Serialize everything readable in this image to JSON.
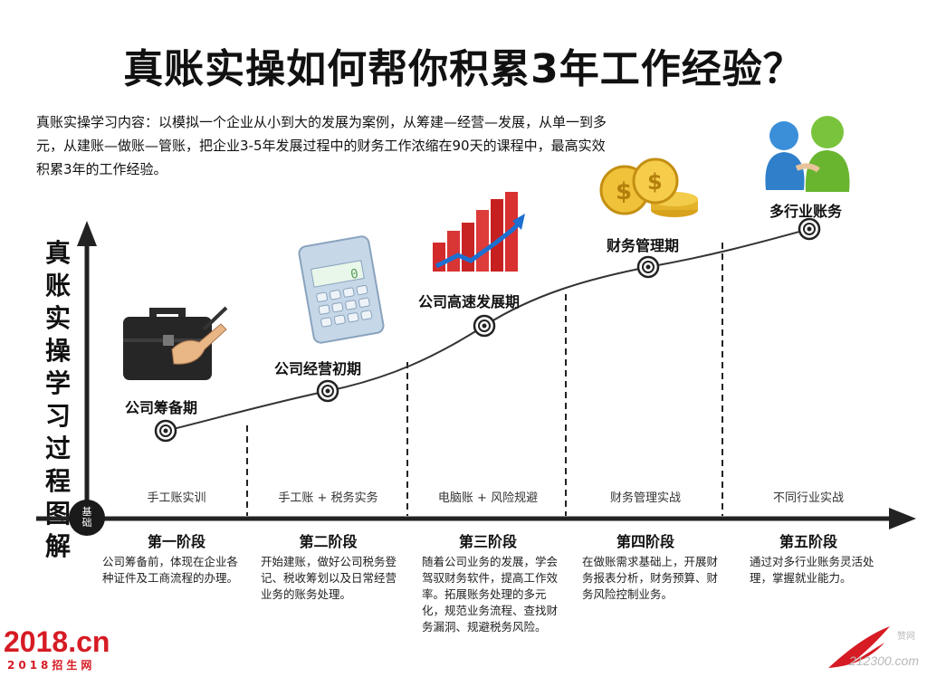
{
  "title": "真账实操如何帮你积累3年工作经验？",
  "intro": "真账实操学习内容：以模拟一个企业从小到大的发展为案例，从筹建—经营—发展，从单一到多元，从建账—做账—管账，把企业3-5年发展过程中的财务工作浓缩在90天的课程中，最高实效积累3年的工作经验。",
  "vertical_title": "真账实操学习过程图解",
  "base_badge": "基础",
  "phases": [
    {
      "label": "公司筹备期",
      "icon": "briefcase-icon"
    },
    {
      "label": "公司经营初期",
      "icon": "calculator-icon"
    },
    {
      "label": "公司高速发展期",
      "icon": "growth-chart-icon"
    },
    {
      "label": "财务管理期",
      "icon": "coins-icon"
    },
    {
      "label": "多行业账务",
      "icon": "people-icon"
    }
  ],
  "base_labels": [
    "手工账实训",
    "手工账 + 税务实务",
    "电脑账 + 风险规避",
    "财务管理实战",
    "不同行业实战"
  ],
  "stages": [
    {
      "title": "第一阶段",
      "desc": "公司筹备前，体现在企业各种证件及工商流程的办理。"
    },
    {
      "title": "第二阶段",
      "desc": "开始建账，做好公司税务登记、税收筹划以及日常经营业务的账务处理。"
    },
    {
      "title": "第三阶段",
      "desc": "随着公司业务的发展，学会驾驭财务软件，提高工作效率。拓展账务处理的多元化，规范业务流程、查找财务漏洞、规避税务风险。"
    },
    {
      "title": "第四阶段",
      "desc": "在做账需求基础上，开展财务报表分析，财务预算、财务风险控制业务。"
    },
    {
      "title": "第五阶段",
      "desc": "通过对多行业账务灵活处理，掌握就业能力。"
    }
  ],
  "logo_left": {
    "big": "2018.cn",
    "small": "2018招生网"
  },
  "logo_right": {
    "site": "212300.com",
    "tag": "赞网"
  },
  "colors": {
    "accent": "#d61b24",
    "line": "#222222"
  }
}
